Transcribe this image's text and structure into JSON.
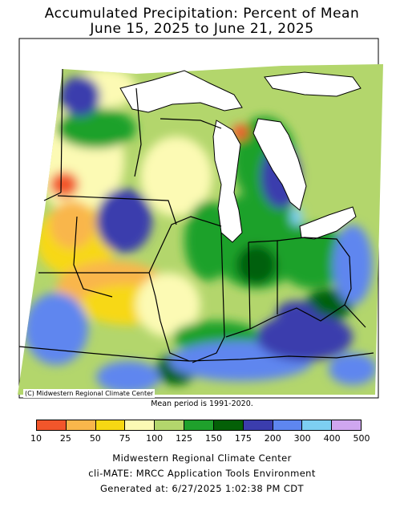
{
  "title_line1": "Accumulated Precipitation: Percent of Mean",
  "title_line2": "June 15, 2025 to June 21, 2025",
  "map": {
    "credit": "(C) Midwestern Regional Climate Center",
    "mean_period": "Mean period is 1991-2020."
  },
  "legend": {
    "ticks": [
      "10",
      "25",
      "50",
      "75",
      "100",
      "125",
      "150",
      "175",
      "200",
      "300",
      "400",
      "500"
    ],
    "colors": [
      "#f2562b",
      "#f9b64b",
      "#f7d813",
      "#fcfab4",
      "#b3d66c",
      "#1fa12c",
      "#046007",
      "#3b3dad",
      "#5e86ef",
      "#7dcff2",
      "#cfa6ef"
    ]
  },
  "footer": {
    "line1": "Midwestern Regional Climate Center",
    "line2": "cli-MATE: MRCC Application Tools Environment",
    "line3": "Generated at: 6/27/2025 1:02:38 PM CDT"
  }
}
